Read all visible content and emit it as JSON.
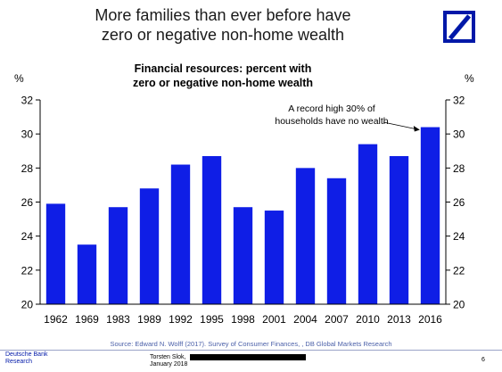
{
  "slide": {
    "title_lines": [
      "More families than ever before have",
      "zero or negative non-home wealth"
    ],
    "source": "Source: Edward N. Wolff (2017). Survey of Consumer Finances, , DB Global Markets Research",
    "brand_lines": [
      "Deutsche Bank",
      "Research"
    ],
    "author_lines": [
      "Torsten Slok,",
      "January 2018"
    ],
    "page_number": "6",
    "logo_icon": "deutsche-bank-logo-icon",
    "accent_color": "#0018a8"
  },
  "chart_data": {
    "type": "bar",
    "title_lines": [
      "Financial resources: percent with",
      "zero or negative non-home wealth"
    ],
    "categories": [
      "1962",
      "1969",
      "1983",
      "1989",
      "1992",
      "1995",
      "1998",
      "2001",
      "2004",
      "2007",
      "2010",
      "2013",
      "2016"
    ],
    "values": [
      25.9,
      23.5,
      25.7,
      26.8,
      28.2,
      28.7,
      25.7,
      25.5,
      28.0,
      27.4,
      29.4,
      28.7,
      30.4
    ],
    "ylim": [
      20,
      32
    ],
    "yticks": [
      20,
      22,
      24,
      26,
      28,
      30,
      32
    ],
    "ylabel_left": "%",
    "ylabel_right": "%",
    "bar_color": "#0f1ee6",
    "grid": false,
    "annotation": {
      "lines": [
        "A record high 30% of",
        "households have no wealth"
      ],
      "target_category": "2016"
    }
  }
}
